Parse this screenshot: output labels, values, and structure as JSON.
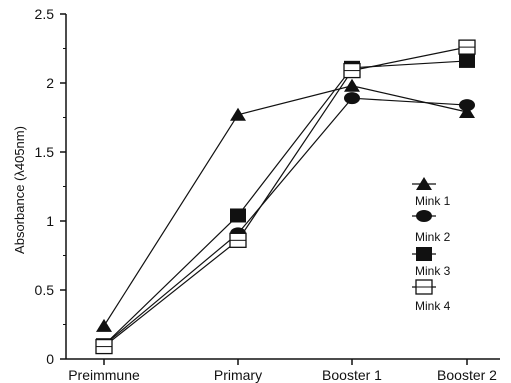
{
  "chart_data": {
    "type": "line",
    "categories": [
      "Preimmune",
      "Primary",
      "Booster 1",
      "Booster 2"
    ],
    "ylabel": "Absorbance (λ405nm)",
    "xlabel": "",
    "ylim": [
      0,
      2.5
    ],
    "yticks": [
      "0",
      "0.5",
      "1",
      "1.5",
      "2",
      "2.5"
    ],
    "grid": false,
    "legend": "right",
    "series": [
      {
        "name": "Mink 1",
        "marker": "triangle",
        "values": [
          0.24,
          1.77,
          1.98,
          1.79
        ]
      },
      {
        "name": "Mink 2",
        "marker": "ellipse",
        "values": [
          0.1,
          0.91,
          1.89,
          1.84
        ]
      },
      {
        "name": "Mink 3",
        "marker": "square-filled",
        "values": [
          0.1,
          1.04,
          2.11,
          2.16
        ]
      },
      {
        "name": "Mink 4",
        "marker": "square-open",
        "values": [
          0.09,
          0.86,
          2.09,
          2.26
        ]
      }
    ]
  }
}
